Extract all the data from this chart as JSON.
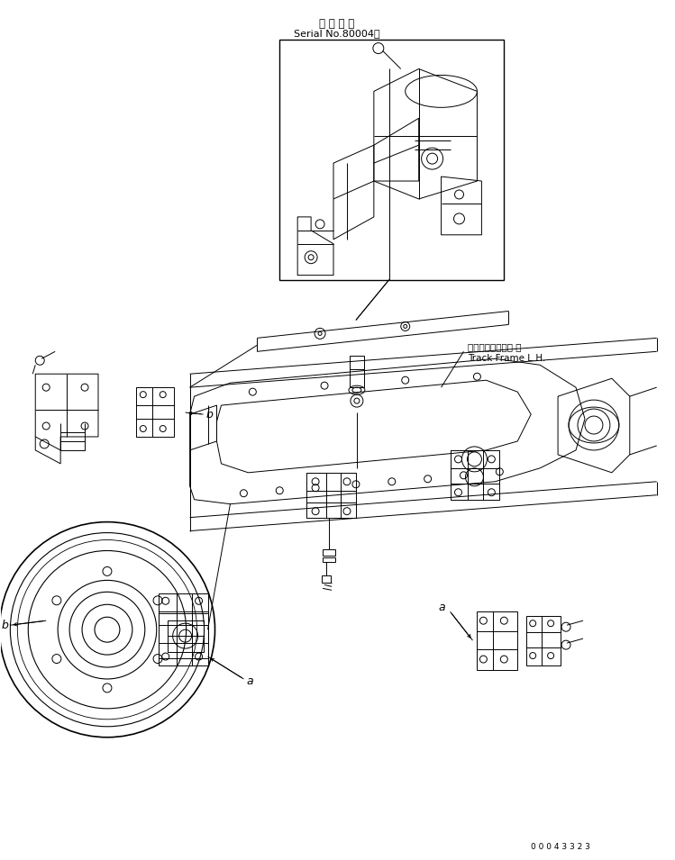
{
  "title_jp": "適 用 号 機",
  "title_en": "Serial No.80004～",
  "label_track_jp": "トラックフレーム 左",
  "label_track_en": "Track Frame L.H.",
  "label_a": "a",
  "label_b": "b",
  "part_number": "0 0 0 4 3 3 2 3",
  "bg_color": "#ffffff",
  "lc": "#000000",
  "lw": 0.7,
  "fig_w": 7.49,
  "fig_h": 9.55,
  "dpi": 100
}
